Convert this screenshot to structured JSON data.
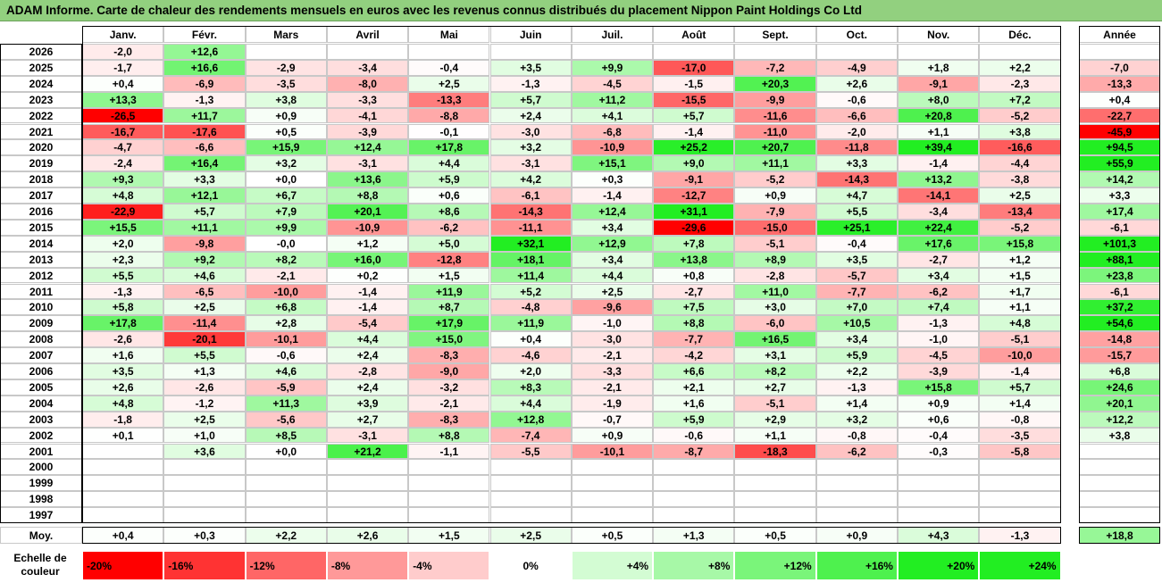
{
  "title": "ADAM Informe. Carte de chaleur des rendements mensuels en euros avec les revenus connus distribués du placement Nippon Paint Holdings Co Ltd",
  "colors": {
    "title_bg": "#92d07f",
    "neg_strong": "#ff0000",
    "pos_strong": "#22ee22",
    "neutral": "#ffffff"
  },
  "chart_data": {
    "type": "heatmap",
    "month_labels": [
      "Janv.",
      "Févr.",
      "Mars",
      "Avril",
      "Mai",
      "Juin",
      "Juil.",
      "Août",
      "Sept.",
      "Oct.",
      "Nov.",
      "Déc."
    ],
    "annual_label": "Année",
    "avg_label": "Moy.",
    "rows": [
      {
        "year": "2026",
        "months": [
          "-2,0",
          "+12,6",
          "",
          "",
          "",
          "",
          "",
          "",
          "",
          "",
          "",
          ""
        ],
        "annual": ""
      },
      {
        "year": "2025",
        "months": [
          "-1,7",
          "+16,6",
          "-2,9",
          "-3,4",
          "-0,4",
          "+3,5",
          "+9,9",
          "-17,0",
          "-7,2",
          "-4,9",
          "+1,8",
          "+2,2"
        ],
        "annual": "-7,0"
      },
      {
        "year": "2024",
        "months": [
          "+0,4",
          "-6,9",
          "-3,5",
          "-8,0",
          "+2,5",
          "-1,3",
          "-4,5",
          "-1,5",
          "+20,3",
          "+2,6",
          "-9,1",
          "-2,3"
        ],
        "annual": "-13,3"
      },
      {
        "year": "2023",
        "months": [
          "+13,3",
          "-1,3",
          "+3,8",
          "-3,3",
          "-13,3",
          "+5,7",
          "+11,2",
          "-15,5",
          "-9,9",
          "-0,6",
          "+8,0",
          "+7,2"
        ],
        "annual": "+0,4"
      },
      {
        "year": "2022",
        "months": [
          "-26,5",
          "+11,7",
          "+0,9",
          "-4,1",
          "-8,8",
          "+2,4",
          "+4,1",
          "+5,7",
          "-11,6",
          "-6,6",
          "+20,8",
          "-5,2"
        ],
        "annual": "-22,7"
      },
      {
        "year": "2021",
        "months": [
          "-16,7",
          "-17,6",
          "+0,5",
          "-3,9",
          "-0,1",
          "-3,0",
          "-6,8",
          "-1,4",
          "-11,0",
          "-2,0",
          "+1,1",
          "+3,8"
        ],
        "annual": "-45,9"
      },
      {
        "year": "2020",
        "months": [
          "-4,7",
          "-6,6",
          "+15,9",
          "+12,4",
          "+17,8",
          "+3,2",
          "-10,9",
          "+25,2",
          "+20,7",
          "-11,8",
          "+39,4",
          "-16,6"
        ],
        "annual": "+94,5"
      },
      {
        "year": "2019",
        "months": [
          "-2,4",
          "+16,4",
          "+3,2",
          "-3,1",
          "+4,4",
          "-3,1",
          "+15,1",
          "+9,0",
          "+11,1",
          "+3,3",
          "-1,4",
          "-4,4"
        ],
        "annual": "+55,9"
      },
      {
        "year": "2018",
        "months": [
          "+9,3",
          "+3,3",
          "+0,0",
          "+13,6",
          "+5,9",
          "+4,2",
          "+0,3",
          "-9,1",
          "-5,2",
          "-14,3",
          "+13,2",
          "-3,8"
        ],
        "annual": "+14,2"
      },
      {
        "year": "2017",
        "months": [
          "+4,8",
          "+12,1",
          "+6,7",
          "+8,8",
          "+0,6",
          "-6,1",
          "-1,4",
          "-12,7",
          "+0,9",
          "+4,7",
          "-14,1",
          "+2,5"
        ],
        "annual": "+3,3"
      },
      {
        "year": "2016",
        "months": [
          "-22,9",
          "+5,7",
          "+7,9",
          "+20,1",
          "+8,6",
          "-14,3",
          "+12,4",
          "+31,1",
          "-7,9",
          "+5,5",
          "-3,4",
          "-13,4"
        ],
        "annual": "+17,4"
      },
      {
        "year": "2015",
        "months": [
          "+15,5",
          "+11,1",
          "+9,9",
          "-10,9",
          "-6,2",
          "-11,1",
          "+3,4",
          "-29,6",
          "-15,0",
          "+25,1",
          "+22,4",
          "-5,2"
        ],
        "annual": "-6,1"
      },
      {
        "year": "2014",
        "months": [
          "+2,0",
          "-9,8",
          "-0,0",
          "+1,2",
          "+5,0",
          "+32,1",
          "+12,9",
          "+7,8",
          "-5,1",
          "-0,4",
          "+17,6",
          "+15,8"
        ],
        "annual": "+101,3"
      },
      {
        "year": "2013",
        "months": [
          "+2,3",
          "+9,2",
          "+8,2",
          "+16,0",
          "-12,8",
          "+18,1",
          "+3,4",
          "+13,8",
          "+8,9",
          "+3,5",
          "-2,7",
          "+1,2"
        ],
        "annual": "+88,1"
      },
      {
        "year": "2012",
        "months": [
          "+5,5",
          "+4,6",
          "-2,1",
          "+0,2",
          "+1,5",
          "+11,4",
          "+4,4",
          "+0,8",
          "-2,8",
          "-5,7",
          "+3,4",
          "+1,5"
        ],
        "annual": "+23,8"
      },
      {
        "year": "2011",
        "months": [
          "-1,3",
          "-6,5",
          "-10,0",
          "-1,4",
          "+11,9",
          "+5,2",
          "+2,5",
          "-2,7",
          "+11,0",
          "-7,7",
          "-6,2",
          "+1,7"
        ],
        "annual": "-6,1"
      },
      {
        "year": "2010",
        "months": [
          "+5,8",
          "+2,5",
          "+6,8",
          "-1,4",
          "+8,7",
          "-4,8",
          "-9,6",
          "+7,5",
          "+3,0",
          "+7,0",
          "+7,4",
          "+1,1"
        ],
        "annual": "+37,2"
      },
      {
        "year": "2009",
        "months": [
          "+17,8",
          "-11,4",
          "+2,8",
          "-5,4",
          "+17,9",
          "+11,9",
          "-1,0",
          "+8,8",
          "-6,0",
          "+10,5",
          "-1,3",
          "+4,8"
        ],
        "annual": "+54,6"
      },
      {
        "year": "2008",
        "months": [
          "-2,6",
          "-20,1",
          "-10,1",
          "+4,4",
          "+15,0",
          "+0,4",
          "-3,0",
          "-7,7",
          "+16,5",
          "+3,4",
          "-1,0",
          "-5,1"
        ],
        "annual": "-14,8"
      },
      {
        "year": "2007",
        "months": [
          "+1,6",
          "+5,5",
          "-0,6",
          "+2,4",
          "-8,3",
          "-4,6",
          "-2,1",
          "-4,2",
          "+3,1",
          "+5,9",
          "-4,5",
          "-10,0"
        ],
        "annual": "-15,7"
      },
      {
        "year": "2006",
        "months": [
          "+3,5",
          "+1,3",
          "+4,6",
          "-2,8",
          "-9,0",
          "+2,0",
          "-3,3",
          "+6,6",
          "+8,2",
          "+2,2",
          "-3,9",
          "-1,4"
        ],
        "annual": "+6,8"
      },
      {
        "year": "2005",
        "months": [
          "+2,6",
          "-2,6",
          "-5,9",
          "+2,4",
          "-3,2",
          "+8,3",
          "-2,1",
          "+2,1",
          "+2,7",
          "-1,3",
          "+15,8",
          "+5,7"
        ],
        "annual": "+24,6"
      },
      {
        "year": "2004",
        "months": [
          "+4,8",
          "-1,2",
          "+11,3",
          "+3,9",
          "-2,1",
          "+4,4",
          "-1,9",
          "+1,6",
          "-5,1",
          "+1,4",
          "+0,9",
          "+1,4"
        ],
        "annual": "+20,1"
      },
      {
        "year": "2003",
        "months": [
          "-1,8",
          "+2,5",
          "-5,6",
          "+2,7",
          "-8,3",
          "+12,8",
          "-0,7",
          "+5,9",
          "+2,9",
          "+3,2",
          "+0,6",
          "-0,8"
        ],
        "annual": "+12,2"
      },
      {
        "year": "2002",
        "months": [
          "+0,1",
          "+1,0",
          "+8,5",
          "-3,1",
          "+8,8",
          "-7,4",
          "+0,9",
          "-0,6",
          "+1,1",
          "-0,8",
          "-0,4",
          "-3,5"
        ],
        "annual": "+3,8"
      },
      {
        "year": "2001",
        "months": [
          "",
          "+3,6",
          "+0,0",
          "+21,2",
          "-1,1",
          "-5,5",
          "-10,1",
          "-8,7",
          "-18,3",
          "-6,2",
          "-0,3",
          "-5,8"
        ],
        "annual": ""
      },
      {
        "year": "2000",
        "months": [
          "",
          "",
          "",
          "",
          "",
          "",
          "",
          "",
          "",
          "",
          "",
          ""
        ],
        "annual": ""
      },
      {
        "year": "1999",
        "months": [
          "",
          "",
          "",
          "",
          "",
          "",
          "",
          "",
          "",
          "",
          "",
          ""
        ],
        "annual": ""
      },
      {
        "year": "1998",
        "months": [
          "",
          "",
          "",
          "",
          "",
          "",
          "",
          "",
          "",
          "",
          "",
          ""
        ],
        "annual": ""
      },
      {
        "year": "1997",
        "months": [
          "",
          "",
          "",
          "",
          "",
          "",
          "",
          "",
          "",
          "",
          "",
          ""
        ],
        "annual": ""
      }
    ],
    "averages": {
      "months": [
        "+0,4",
        "+0,3",
        "+2,2",
        "+2,6",
        "+1,5",
        "+2,5",
        "+0,5",
        "+1,3",
        "+0,5",
        "+0,9",
        "+4,3",
        "-1,3"
      ],
      "annual": "+18,8"
    },
    "color_scale": {
      "label": "Echelle de couleur",
      "steps": [
        "-20%",
        "-16%",
        "-12%",
        "-8%",
        "-4%",
        "0%",
        "+4%",
        "+8%",
        "+12%",
        "+16%",
        "+20%",
        "+24%"
      ]
    }
  }
}
